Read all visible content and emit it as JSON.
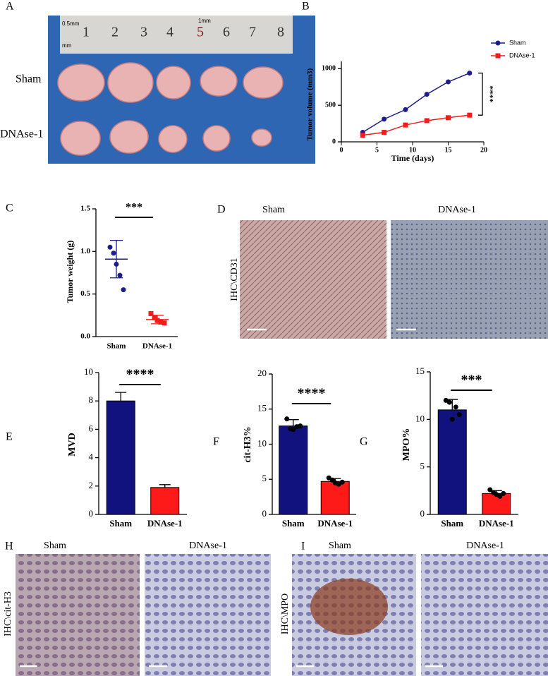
{
  "chart_data": [
    {
      "type": "line",
      "panel": "B",
      "ylabel": "Tumor volume (mm3)",
      "xlabel": "Time (days)",
      "x": [
        3,
        6,
        9,
        12,
        15,
        18
      ],
      "series": [
        {
          "name": "Sham",
          "color": "#1c1c8c",
          "marker": "circle",
          "values": [
            130,
            310,
            440,
            650,
            820,
            940
          ]
        },
        {
          "name": "DNAse-1",
          "color": "#f21c1c",
          "marker": "square",
          "values": [
            90,
            130,
            230,
            290,
            330,
            365
          ]
        }
      ],
      "xlim": [
        0,
        20
      ],
      "xticks": [
        0,
        5,
        10,
        15,
        20
      ],
      "ylim": [
        0,
        1100
      ],
      "yticks": [
        0,
        500,
        1000
      ],
      "legend": "outside-right",
      "annotation": "****"
    },
    {
      "type": "dot",
      "panel": "C",
      "ylabel": "Tumor weight (g)",
      "categories": [
        "Sham",
        "DNAse-1"
      ],
      "colors": [
        "#1c1c8c",
        "#f21c1c"
      ],
      "values": [
        0.91,
        0.2
      ],
      "errors": [
        0.22,
        0.05
      ],
      "points": [
        [
          1.05,
          0.98,
          0.85,
          0.72,
          0.55
        ],
        [
          0.27,
          0.22,
          0.19,
          0.17,
          0.16
        ]
      ],
      "ylim": [
        0,
        1.5
      ],
      "yticks": [
        {
          "value": 0,
          "label": "0.0"
        },
        0.5,
        {
          "value": 1,
          "label": "1.0"
        },
        1.5
      ],
      "annotation": "***"
    },
    {
      "type": "bar",
      "panel": "E",
      "ylabel": "MVD",
      "categories": [
        "Sham",
        "DNAse-1"
      ],
      "colors": [
        "#12127e",
        "#ff1a1a"
      ],
      "values": [
        8,
        1.9
      ],
      "errors": [
        0.6,
        0.2
      ],
      "ylim": [
        0,
        10
      ],
      "yticks": [
        0,
        2,
        4,
        6,
        8,
        10
      ],
      "annotation": "****"
    },
    {
      "type": "bar",
      "panel": "F",
      "ylabel": "cit-H3%",
      "categories": [
        "Sham",
        "DNAse-1"
      ],
      "colors": [
        "#12127e",
        "#ff1a1a"
      ],
      "values": [
        12.6,
        4.7
      ],
      "errors": [
        0.9,
        0.4
      ],
      "points": [
        [
          13.6,
          12.2,
          12.1,
          12.5,
          12.6
        ],
        [
          5.2,
          4.9,
          4.5,
          4.3,
          4.6
        ]
      ],
      "ylim": [
        0,
        20
      ],
      "yticks": [
        0,
        5,
        10,
        15,
        20
      ],
      "annotation": "****"
    },
    {
      "type": "bar",
      "panel": "G",
      "ylabel": "MPO%",
      "categories": [
        "Sham",
        "DNAse-1"
      ],
      "colors": [
        "#12127e",
        "#ff1a1a"
      ],
      "values": [
        11,
        2.2
      ],
      "errors": [
        1.1,
        0.3
      ],
      "points": [
        [
          12.0,
          11.8,
          10.0,
          11.3,
          10.5
        ],
        [
          2.6,
          2.3,
          2.1,
          1.9,
          2.2
        ]
      ],
      "ylim": [
        0,
        15
      ],
      "yticks": [
        0,
        5,
        10,
        15
      ],
      "annotation": "***"
    }
  ],
  "images": {
    "A": {
      "panel": "A",
      "rows": [
        "Sham",
        "DNAse-1"
      ],
      "ruler": [
        "1",
        "2",
        "3",
        "4",
        "5",
        "6",
        "7",
        "8"
      ],
      "units": [
        "0.5mm",
        "1mm",
        "mm"
      ]
    },
    "D": {
      "panel": "D",
      "side": "IHC\\CD31",
      "columns": [
        "Sham",
        "DNAse-1"
      ]
    },
    "H": {
      "panel": "H",
      "side": "IHC\\cit-H3",
      "columns": [
        "Sham",
        "DNAse-1"
      ]
    },
    "I": {
      "panel": "I",
      "side": "IHC\\MPO",
      "columns": [
        "Sham",
        "DNAse-1"
      ]
    }
  }
}
